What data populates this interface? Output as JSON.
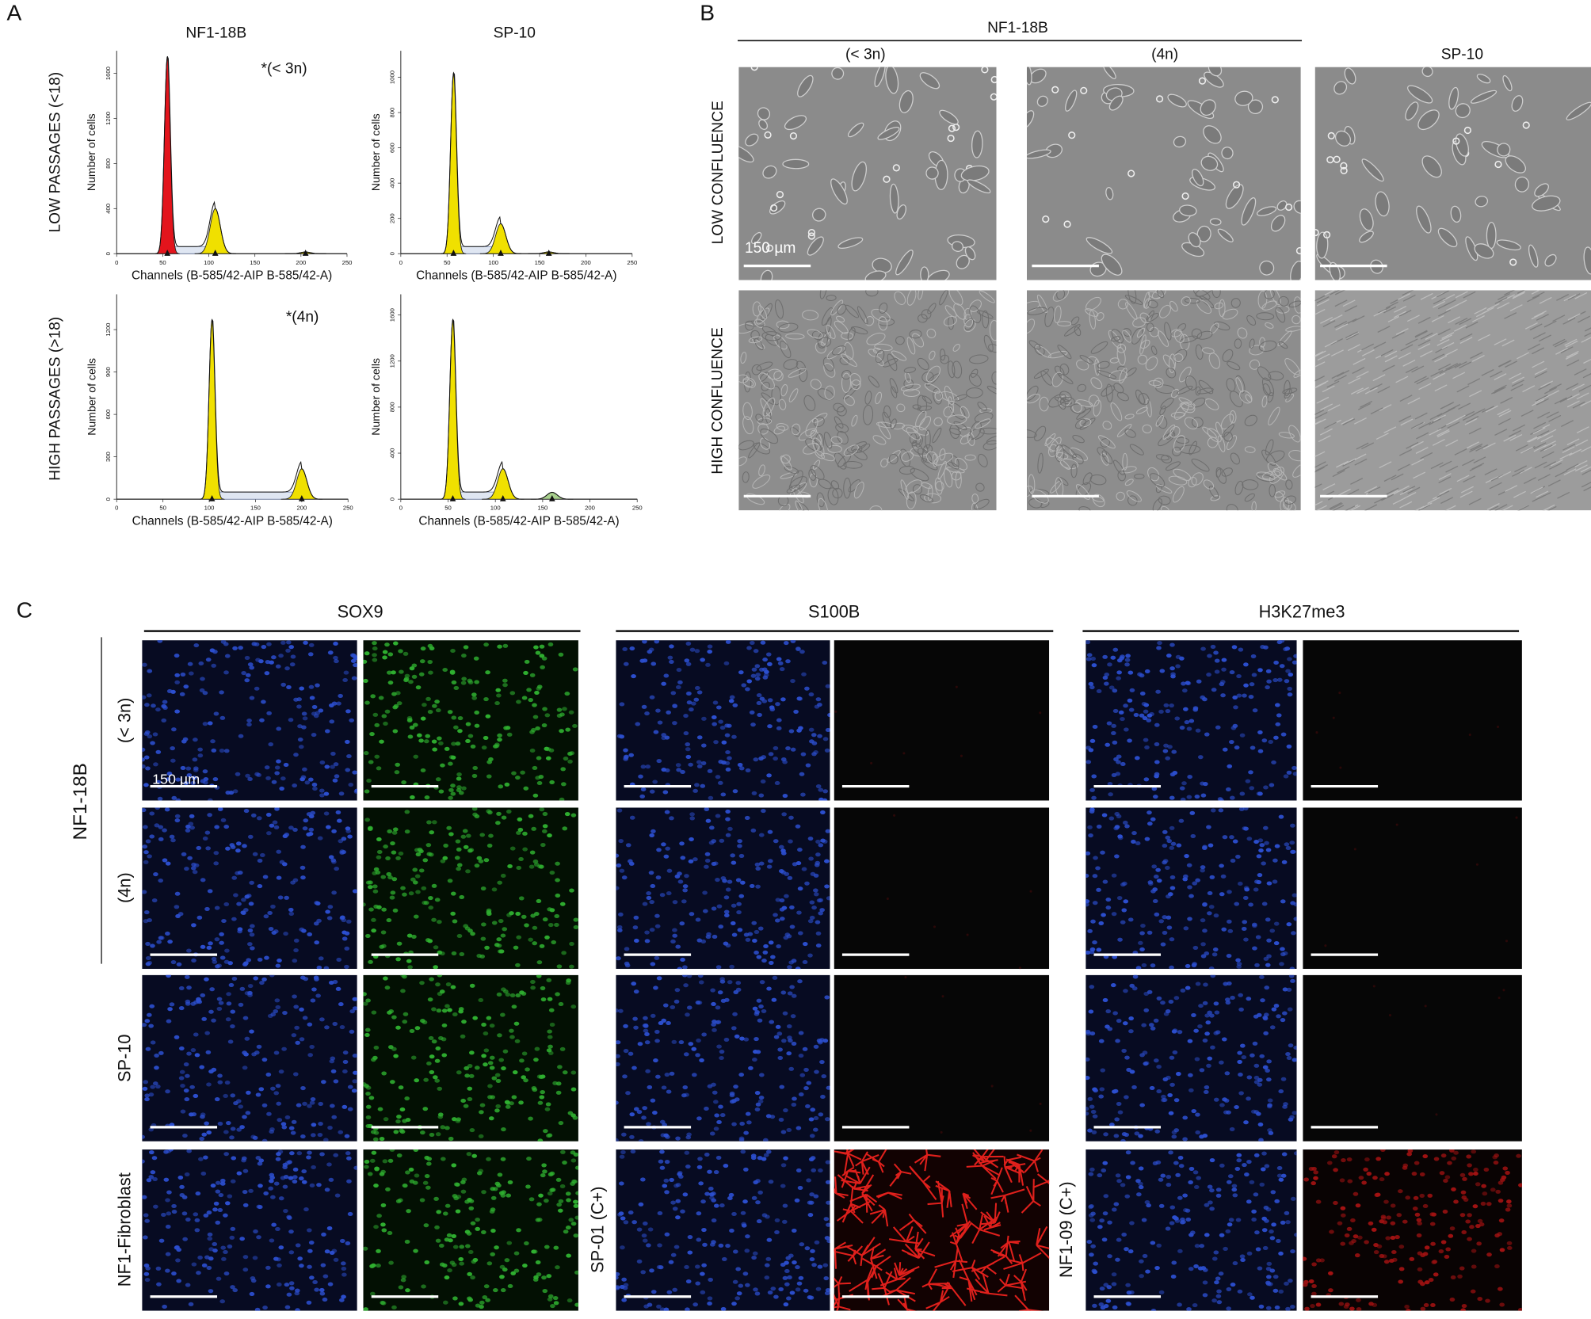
{
  "panel_labels": [
    "A",
    "B",
    "C"
  ],
  "panel_a": {
    "columns": [
      "NF1-18B",
      "SP-10"
    ],
    "rows": [
      "LOW PASSAGES (<18)",
      "HIGH PASSAGES (>18)"
    ],
    "annotations": [
      "*(< 3n)",
      "*(4n)"
    ]
  },
  "chart_data": [
    {
      "type": "histogram-fit",
      "x_label": "Channels (B-585/42-AIP B-585/42-A)",
      "y_label": "Number of cells",
      "xlim": [
        0,
        250
      ],
      "xticks": [
        0,
        50,
        100,
        150,
        200,
        250
      ],
      "ylim": [
        0,
        1800
      ],
      "yticks": [
        0,
        400,
        800,
        1200,
        1600
      ],
      "peaks": [
        {
          "x": 55,
          "count": 1750,
          "color": "#e3141c"
        },
        {
          "x": 107,
          "count": 400,
          "color": "#f0e000"
        },
        {
          "x": 205,
          "count": 15,
          "color": "#f0e000"
        }
      ]
    },
    {
      "type": "histogram-fit",
      "x_label": "Channels (B-585/42-AIP B-585/42-A)",
      "y_label": "Number of cells",
      "xlim": [
        0,
        250
      ],
      "xticks": [
        0,
        50,
        100,
        150,
        200,
        250
      ],
      "ylim": [
        0,
        1150
      ],
      "yticks": [
        0,
        200,
        400,
        600,
        800,
        1000
      ],
      "peaks": [
        {
          "x": 57,
          "count": 1025,
          "color": "#f0e000"
        },
        {
          "x": 108,
          "count": 170,
          "color": "#f0e000"
        },
        {
          "x": 160,
          "count": 10,
          "color": "#f0e000"
        }
      ]
    },
    {
      "type": "histogram-fit",
      "x_label": "Channels (B-585/42-AIP B-585/42-A)",
      "y_label": "Number of cells",
      "xlim": [
        0,
        250
      ],
      "xticks": [
        0,
        50,
        100,
        150,
        200,
        250
      ],
      "ylim": [
        0,
        1450
      ],
      "yticks": [
        0,
        300,
        600,
        900,
        1200
      ],
      "peaks": [
        {
          "x": 103,
          "count": 1270,
          "color": "#f0e000"
        },
        {
          "x": 200,
          "count": 215,
          "color": "#f0e000"
        }
      ]
    },
    {
      "type": "histogram-fit",
      "x_label": "Channels (B-585/42-AIP B-585/42-A)",
      "y_label": "Number of cells",
      "xlim": [
        0,
        250
      ],
      "xticks": [
        0,
        50,
        100,
        150,
        200,
        250
      ],
      "ylim": [
        0,
        1780
      ],
      "yticks": [
        0,
        400,
        800,
        1200,
        1600
      ],
      "peaks": [
        {
          "x": 55,
          "count": 1560,
          "color": "#f0e000"
        },
        {
          "x": 108,
          "count": 265,
          "color": "#f0e000"
        },
        {
          "x": 160,
          "count": 60,
          "color": "#a8d08d"
        }
      ]
    }
  ],
  "panel_b": {
    "group": "NF1-18B",
    "columns": [
      "(< 3n)",
      "(4n)",
      "SP-10"
    ],
    "rows": [
      "LOW CONFLUENCE",
      "HIGH CONFLUENCE"
    ],
    "scale_label": "150 µm"
  },
  "panel_c": {
    "markers": [
      "SOX9",
      "S100B",
      "H3K27me3"
    ],
    "group": "NF1-18B",
    "rows": [
      "(< 3n)",
      "(4n)",
      "SP-10",
      "NF1-Fibroblast"
    ],
    "controls": [
      "SP-01 (C+)",
      "NF1-09 (C+)"
    ],
    "scale_label": "150 µm"
  }
}
